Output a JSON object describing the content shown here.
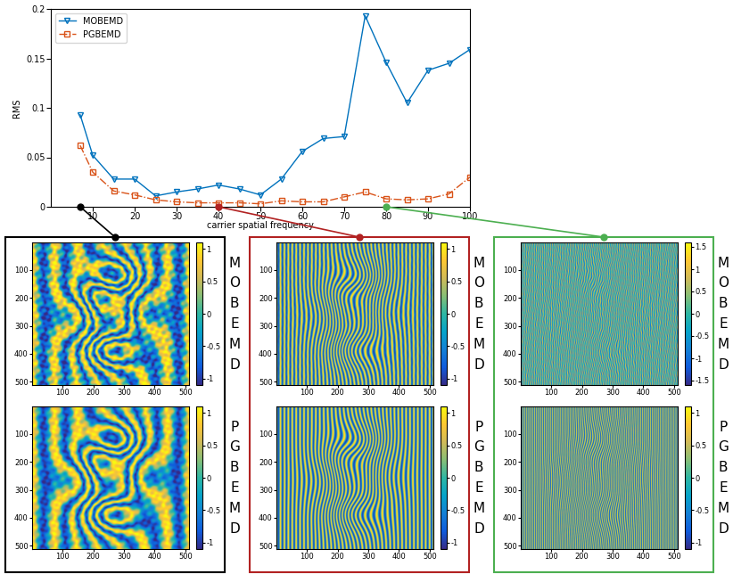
{
  "chart_data": [
    {
      "type": "line",
      "xlabel": "carrier spatial frequency",
      "ylabel": "RMS",
      "x": [
        7,
        10,
        15,
        20,
        25,
        30,
        35,
        40,
        45,
        50,
        55,
        60,
        65,
        70,
        75,
        80,
        85,
        90,
        95,
        100
      ],
      "series": [
        {
          "name": "MOBEMD",
          "color": "#0072bd",
          "marker": "triangle_down",
          "line_style": "solid",
          "values": [
            0.093,
            0.052,
            0.028,
            0.028,
            0.011,
            0.015,
            0.018,
            0.022,
            0.018,
            0.012,
            0.028,
            0.056,
            0.069,
            0.071,
            0.193,
            0.146,
            0.105,
            0.138,
            0.145,
            0.159
          ]
        },
        {
          "name": "PGBEMD",
          "color": "#d95319",
          "marker": "square",
          "line_style": "dashdot",
          "values": [
            0.062,
            0.035,
            0.016,
            0.012,
            0.007,
            0.005,
            0.004,
            0.004,
            0.004,
            0.003,
            0.006,
            0.005,
            0.005,
            0.01,
            0.015,
            0.008,
            0.007,
            0.008,
            0.013,
            0.03
          ]
        }
      ],
      "xlim": [
        0,
        100
      ],
      "xticks": [
        10,
        20,
        30,
        40,
        50,
        60,
        70,
        80,
        90,
        100
      ],
      "ylim": [
        0,
        0.2
      ],
      "yticks": [
        0,
        0.05,
        0.1,
        0.15,
        0.2
      ],
      "legend": "upper left"
    },
    {
      "type": "heatmap",
      "carrier_spatial_frequency": 7,
      "color": "#000000",
      "images": [
        {
          "label": "MOBEMD",
          "xlim": [
            1,
            512
          ],
          "ylim": [
            512,
            1
          ],
          "xticks": [
            100,
            200,
            300,
            400,
            500
          ],
          "yticks": [
            100,
            200,
            300,
            400,
            500
          ],
          "colorbar": {
            "range": [
              -1.1,
              1.1
            ],
            "ticks": [
              -1,
              -0.5,
              0,
              0.5,
              1
            ]
          }
        },
        {
          "label": "PGBEMD",
          "xlim": [
            1,
            512
          ],
          "ylim": [
            512,
            1
          ],
          "xticks": [
            100,
            200,
            300,
            400,
            500
          ],
          "yticks": [
            100,
            200,
            300,
            400,
            500
          ],
          "colorbar": {
            "range": [
              -1.1,
              1.1
            ],
            "ticks": [
              -1,
              -0.5,
              0,
              0.5,
              1
            ]
          }
        }
      ]
    },
    {
      "type": "heatmap",
      "carrier_spatial_frequency": 40,
      "color": "#b22222",
      "images": [
        {
          "label": "MOBEMD",
          "xlim": [
            1,
            512
          ],
          "ylim": [
            512,
            1
          ],
          "xticks": [
            100,
            200,
            300,
            400,
            500
          ],
          "yticks": [
            100,
            200,
            300,
            400,
            500
          ],
          "colorbar": {
            "range": [
              -1.1,
              1.1
            ],
            "ticks": [
              -1,
              -0.5,
              0,
              0.5,
              1
            ]
          }
        },
        {
          "label": "PGBEMD",
          "xlim": [
            1,
            512
          ],
          "ylim": [
            512,
            1
          ],
          "xticks": [
            100,
            200,
            300,
            400,
            500
          ],
          "yticks": [
            100,
            200,
            300,
            400,
            500
          ],
          "colorbar": {
            "range": [
              -1.1,
              1.1
            ],
            "ticks": [
              -1,
              -0.5,
              0,
              0.5,
              1
            ]
          }
        }
      ]
    },
    {
      "type": "heatmap",
      "carrier_spatial_frequency": 80,
      "color": "#4caf50",
      "images": [
        {
          "label": "MOBEMD",
          "xlim": [
            1,
            512
          ],
          "ylim": [
            512,
            1
          ],
          "xticks": [
            100,
            200,
            300,
            400,
            500
          ],
          "yticks": [
            100,
            200,
            300,
            400,
            500
          ],
          "colorbar": {
            "range": [
              -1.6,
              1.6
            ],
            "ticks": [
              -1.5,
              -1,
              -0.5,
              0,
              0.5,
              1,
              1.5
            ]
          }
        },
        {
          "label": "PGBEMD",
          "xlim": [
            1,
            512
          ],
          "ylim": [
            512,
            1
          ],
          "xticks": [
            100,
            200,
            300,
            400,
            500
          ],
          "yticks": [
            100,
            200,
            300,
            400,
            500
          ],
          "colorbar": {
            "range": [
              -1.1,
              1.1
            ],
            "ticks": [
              -1,
              -0.5,
              0,
              0.5,
              1
            ]
          }
        }
      ]
    }
  ]
}
